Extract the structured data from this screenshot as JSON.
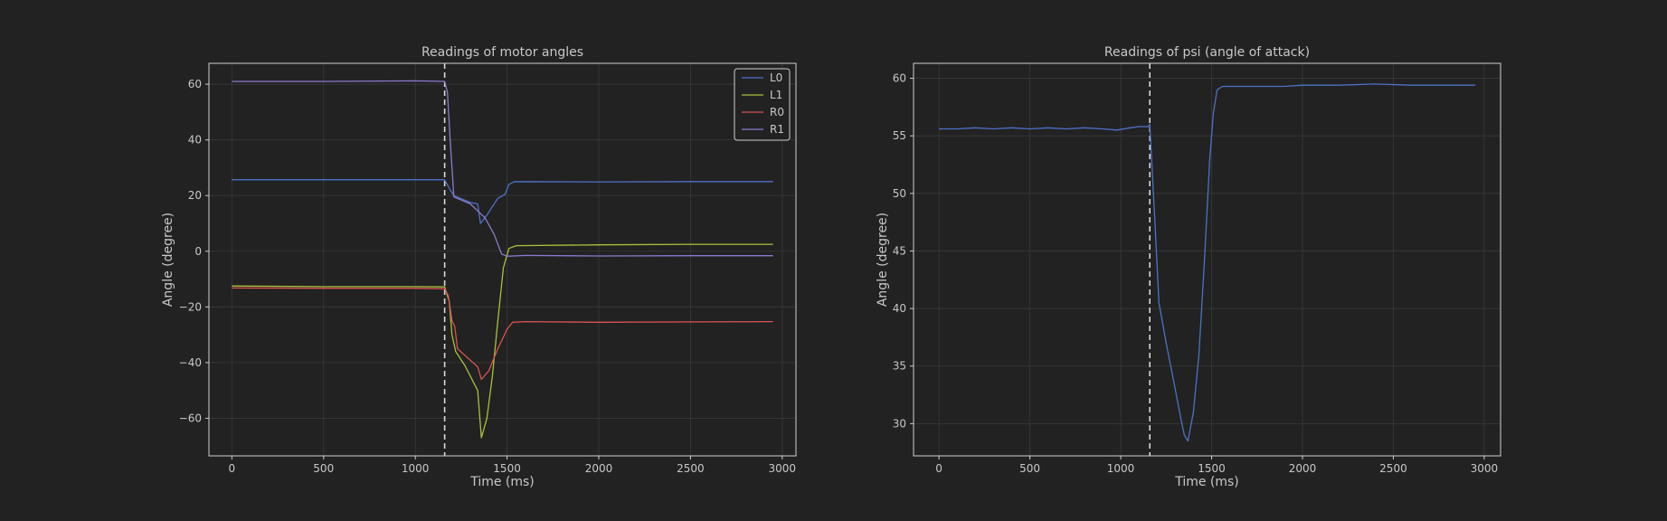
{
  "theme": {
    "background": "#222222",
    "axes_edge": "#d0d0d0",
    "grid": "#3a3a3a",
    "text": "#c8c8c8",
    "event_line": "#d8d8d8"
  },
  "chart_data": [
    {
      "type": "line",
      "title": "Readings of motor angles",
      "xlabel": "Time (ms)",
      "ylabel": "Angle (degree)",
      "xlim": [
        -125,
        3075
      ],
      "ylim": [
        -73.5,
        67.5
      ],
      "xticks": [
        0,
        500,
        1000,
        1500,
        2000,
        2500,
        3000
      ],
      "yticks": [
        -60,
        -40,
        -20,
        0,
        20,
        40,
        60
      ],
      "grid": true,
      "legend": "top-right",
      "event_line_x": 1160,
      "series": [
        {
          "name": "L0",
          "color": "#4c72c7",
          "points": [
            [
              0,
              25.7
            ],
            [
              500,
              25.7
            ],
            [
              1000,
              25.7
            ],
            [
              1160,
              25.7
            ],
            [
              1190,
              22
            ],
            [
              1210,
              20
            ],
            [
              1300,
              17.5
            ],
            [
              1340,
              17
            ],
            [
              1355,
              10
            ],
            [
              1390,
              13
            ],
            [
              1420,
              16
            ],
            [
              1450,
              19
            ],
            [
              1490,
              20.5
            ],
            [
              1510,
              24
            ],
            [
              1540,
              25
            ],
            [
              2000,
              24.9
            ],
            [
              2500,
              25
            ],
            [
              2950,
              25
            ]
          ]
        },
        {
          "name": "L1",
          "color": "#a8c23a",
          "points": [
            [
              0,
              -12.5
            ],
            [
              500,
              -12.7
            ],
            [
              1000,
              -12.7
            ],
            [
              1160,
              -12.8
            ],
            [
              1185,
              -18
            ],
            [
              1200,
              -30
            ],
            [
              1220,
              -36
            ],
            [
              1270,
              -41
            ],
            [
              1340,
              -50
            ],
            [
              1360,
              -67
            ],
            [
              1390,
              -60
            ],
            [
              1420,
              -45
            ],
            [
              1450,
              -25
            ],
            [
              1480,
              -6
            ],
            [
              1510,
              1
            ],
            [
              1550,
              2
            ],
            [
              2000,
              2.3
            ],
            [
              2500,
              2.5
            ],
            [
              2950,
              2.5
            ]
          ]
        },
        {
          "name": "R0",
          "color": "#d9534f",
          "points": [
            [
              0,
              -13.2
            ],
            [
              500,
              -13.3
            ],
            [
              1000,
              -13.3
            ],
            [
              1160,
              -13.5
            ],
            [
              1180,
              -16
            ],
            [
              1200,
              -25
            ],
            [
              1215,
              -27
            ],
            [
              1230,
              -35
            ],
            [
              1340,
              -41.5
            ],
            [
              1360,
              -46
            ],
            [
              1400,
              -43
            ],
            [
              1450,
              -35
            ],
            [
              1500,
              -28
            ],
            [
              1530,
              -25.5
            ],
            [
              1600,
              -25.3
            ],
            [
              2000,
              -25.5
            ],
            [
              2500,
              -25.4
            ],
            [
              2950,
              -25.3
            ]
          ]
        },
        {
          "name": "R1",
          "color": "#8e79cf",
          "points": [
            [
              0,
              61
            ],
            [
              500,
              61
            ],
            [
              1000,
              61.2
            ],
            [
              1160,
              61
            ],
            [
              1175,
              57
            ],
            [
              1190,
              40
            ],
            [
              1210,
              19.5
            ],
            [
              1300,
              17
            ],
            [
              1380,
              12
            ],
            [
              1430,
              6
            ],
            [
              1470,
              -1
            ],
            [
              1500,
              -1.8
            ],
            [
              1600,
              -1.5
            ],
            [
              2000,
              -1.7
            ],
            [
              2500,
              -1.6
            ],
            [
              2950,
              -1.6
            ]
          ]
        }
      ]
    },
    {
      "type": "line",
      "title": "Readings of psi (angle of attack)",
      "xlabel": "Time (ms)",
      "ylabel": "Angle (degree)",
      "xlim": [
        -140,
        3090
      ],
      "ylim": [
        27.2,
        61.3
      ],
      "xticks": [
        0,
        500,
        1000,
        1500,
        2000,
        2500,
        3000
      ],
      "yticks": [
        30,
        35,
        40,
        45,
        50,
        55,
        60
      ],
      "grid": true,
      "event_line_x": 1160,
      "series": [
        {
          "color": "#4c72c7",
          "points": [
            [
              0,
              55.6
            ],
            [
              100,
              55.6
            ],
            [
              200,
              55.7
            ],
            [
              300,
              55.6
            ],
            [
              400,
              55.7
            ],
            [
              500,
              55.6
            ],
            [
              600,
              55.7
            ],
            [
              700,
              55.6
            ],
            [
              800,
              55.7
            ],
            [
              900,
              55.6
            ],
            [
              980,
              55.5
            ],
            [
              1050,
              55.7
            ],
            [
              1100,
              55.8
            ],
            [
              1150,
              55.8
            ],
            [
              1160,
              56
            ],
            [
              1170,
              53
            ],
            [
              1190,
              47
            ],
            [
              1210,
              40.5
            ],
            [
              1250,
              37
            ],
            [
              1300,
              33
            ],
            [
              1330,
              30.5
            ],
            [
              1350,
              29
            ],
            [
              1370,
              28.5
            ],
            [
              1400,
              31
            ],
            [
              1430,
              36
            ],
            [
              1460,
              44
            ],
            [
              1490,
              53
            ],
            [
              1510,
              57
            ],
            [
              1530,
              59
            ],
            [
              1560,
              59.3
            ],
            [
              1700,
              59.3
            ],
            [
              1800,
              59.3
            ],
            [
              1900,
              59.3
            ],
            [
              2000,
              59.4
            ],
            [
              2200,
              59.4
            ],
            [
              2400,
              59.5
            ],
            [
              2600,
              59.4
            ],
            [
              2800,
              59.4
            ],
            [
              2950,
              59.4
            ]
          ]
        }
      ]
    }
  ]
}
